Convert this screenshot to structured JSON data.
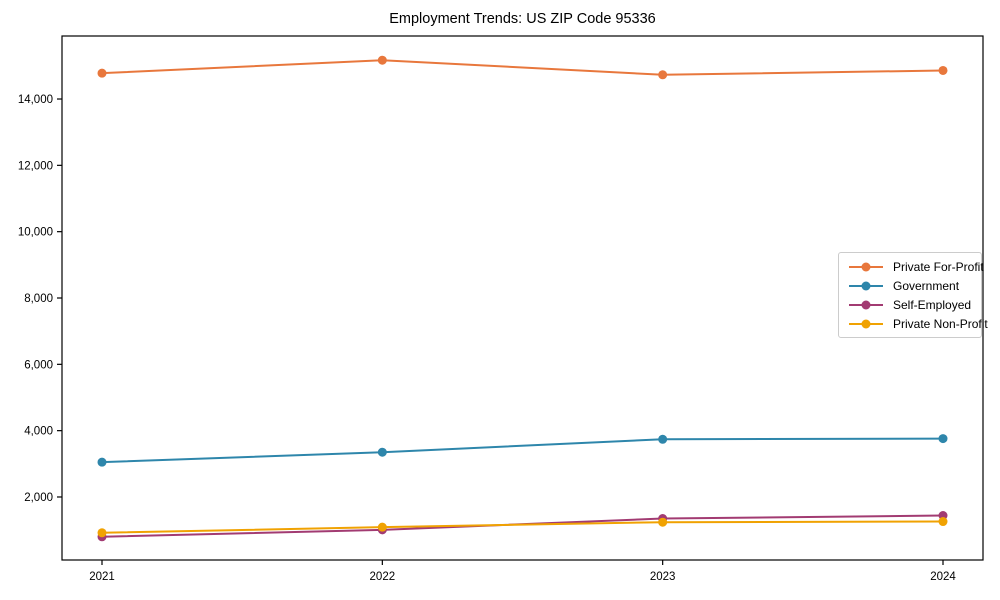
{
  "title": "Employment Trends: US ZIP Code 95336",
  "chart_data": {
    "type": "line",
    "x": [
      2021,
      2022,
      2023,
      2024
    ],
    "xtick_labels": [
      "2021",
      "2022",
      "2023",
      "2024"
    ],
    "series": [
      {
        "name": "Private For-Profit",
        "color": "#E8773C",
        "values": [
          14780,
          15170,
          14730,
          14860
        ]
      },
      {
        "name": "Government",
        "color": "#2E86AB",
        "values": [
          3050,
          3350,
          3740,
          3760
        ]
      },
      {
        "name": "Self-Employed",
        "color": "#A23B72",
        "values": [
          800,
          1010,
          1350,
          1440
        ]
      },
      {
        "name": "Private Non-Profit",
        "color": "#F0A202",
        "values": [
          920,
          1090,
          1240,
          1260
        ]
      }
    ],
    "yticks": [
      2000,
      4000,
      6000,
      8000,
      10000,
      12000,
      14000
    ],
    "ytick_labels": [
      "2,000",
      "4,000",
      "6,000",
      "8,000",
      "10,000",
      "12,000",
      "14,000"
    ],
    "ylim": [
      100,
      15900
    ],
    "grid": false,
    "marker": "circle",
    "legend_position": "right",
    "frame_color": "#000000",
    "background_color": "#ffffff"
  }
}
